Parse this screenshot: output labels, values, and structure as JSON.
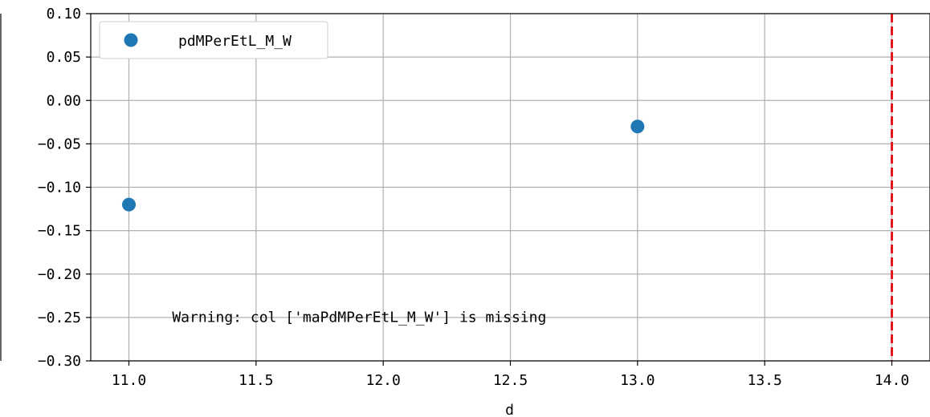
{
  "chart_data": {
    "type": "scatter",
    "title": "",
    "xlabel": "d",
    "ylabel": "",
    "xlim": [
      10.85,
      14.15
    ],
    "ylim": [
      -0.3,
      0.1
    ],
    "x_ticks": [
      11.0,
      11.5,
      12.0,
      12.5,
      13.0,
      13.5,
      14.0
    ],
    "x_tick_labels": [
      "11.0",
      "11.5",
      "12.0",
      "12.5",
      "13.0",
      "13.5",
      "14.0"
    ],
    "y_ticks": [
      0.1,
      0.05,
      0.0,
      -0.05,
      -0.1,
      -0.15,
      -0.2,
      -0.25,
      -0.3
    ],
    "y_tick_labels": [
      "0.10",
      "0.05",
      "0.00",
      "−0.05",
      "−0.10",
      "−0.15",
      "−0.20",
      "−0.25",
      "−0.30"
    ],
    "grid": true,
    "legend_position": "top-left",
    "series": [
      {
        "name": "pdMPerEtL_M_W",
        "color": "#1f77b4",
        "x": [
          11.0,
          13.0
        ],
        "y": [
          -0.12,
          -0.03
        ]
      }
    ],
    "vertical_line": {
      "x": 14.0,
      "color": "#e41a1c",
      "style": "dashed"
    },
    "annotation": {
      "text": "Warning: col ['maPdMPerEtL_M_W'] is missing",
      "x": 11.17,
      "y": -0.255
    }
  }
}
